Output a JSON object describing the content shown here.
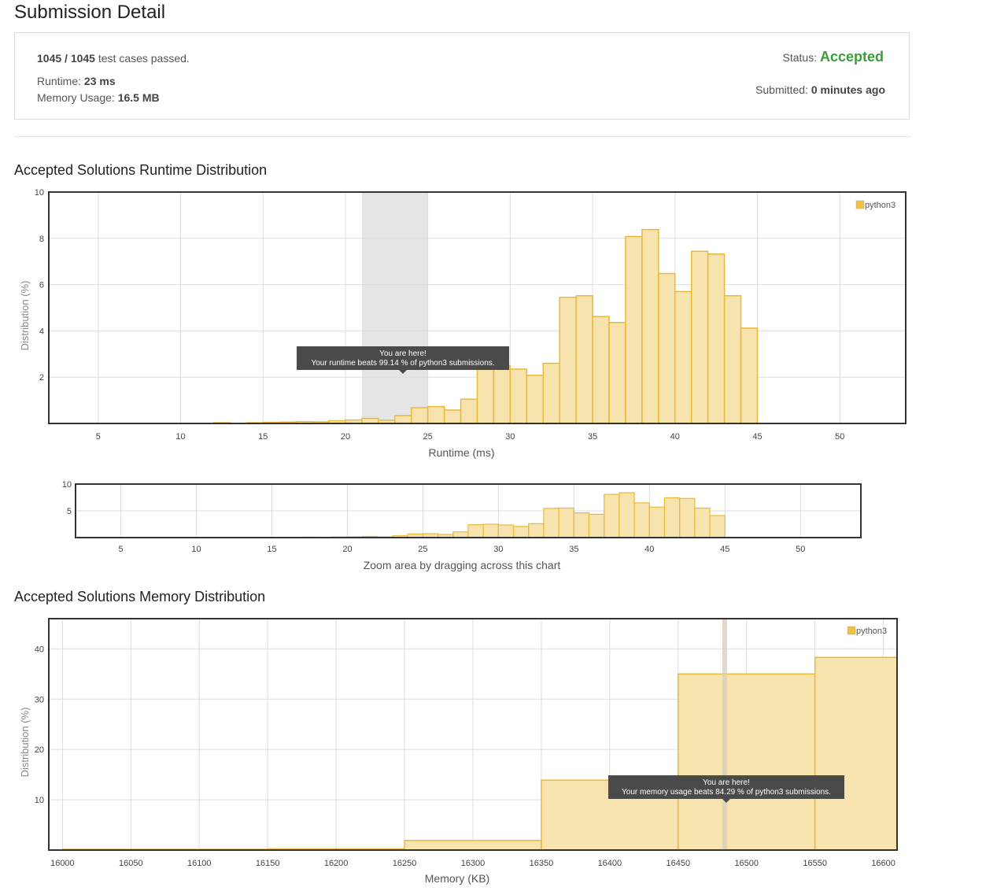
{
  "page_title": "Submission Detail",
  "summary": {
    "passed_count": "1045 / 1045",
    "passed_text": " test cases passed.",
    "runtime_label": "Runtime: ",
    "runtime_value": "23 ms",
    "memory_label": "Memory Usage: ",
    "memory_value": "16.5 MB",
    "status_label": "Status: ",
    "status_value": "Accepted",
    "submitted_label": "Submitted: ",
    "submitted_value": "0 minutes ago"
  },
  "runtime_section_title": "Accepted Solutions Runtime Distribution",
  "memory_section_title": "Accepted Solutions Memory Distribution",
  "colors": {
    "bar_fill": "#f7e3ad",
    "bar_stroke": "#e8b93a",
    "accent_green": "#3a9d3a",
    "highlight": "#e5e5e5",
    "tooltip": "#4a4a4a"
  },
  "chart_data": [
    {
      "type": "bar",
      "name": "runtime-main",
      "title": "",
      "xlabel": "Runtime (ms)",
      "ylabel": "Distribution (%)",
      "xlim": [
        2,
        54
      ],
      "ylim": [
        0,
        10
      ],
      "xticks": [
        5,
        10,
        15,
        20,
        25,
        30,
        35,
        40,
        45,
        50
      ],
      "yticks": [
        2,
        4,
        6,
        8,
        10
      ],
      "bin_width": 1,
      "legend": "top-right",
      "series": [
        {
          "name": "python3",
          "x": [
            12,
            14,
            15,
            16,
            17,
            18,
            19,
            20,
            21,
            22,
            23,
            24,
            25,
            26,
            27,
            28,
            29,
            30,
            31,
            32,
            33,
            34,
            35,
            36,
            37,
            38,
            39,
            40,
            41,
            42,
            43,
            44
          ],
          "values": [
            0.03,
            0.03,
            0.05,
            0.06,
            0.08,
            0.07,
            0.12,
            0.15,
            0.22,
            0.14,
            0.34,
            0.68,
            0.73,
            0.58,
            1.05,
            2.4,
            2.5,
            2.35,
            2.08,
            2.6,
            5.45,
            5.52,
            4.62,
            4.36,
            8.08,
            8.38,
            6.48,
            5.7,
            7.44,
            7.32,
            5.52,
            4.12
          ]
        }
      ],
      "highlight_range": [
        21,
        25
      ],
      "tooltip": {
        "line1": "You are here!",
        "line2": "Your runtime beats 99.14 % of python3 submissions."
      }
    },
    {
      "type": "bar",
      "name": "runtime-navigator",
      "xlabel": "Zoom area by dragging across this chart",
      "xlim": [
        2,
        54
      ],
      "ylim": [
        0,
        10
      ],
      "xticks": [
        5,
        10,
        15,
        20,
        25,
        30,
        35,
        40,
        45,
        50
      ],
      "yticks": [
        5,
        10
      ]
    },
    {
      "type": "bar",
      "name": "memory-main",
      "title": "",
      "xlabel": "Memory (KB)",
      "ylabel": "Distribution (%)",
      "xlim": [
        15990,
        16610
      ],
      "ylim": [
        0,
        46
      ],
      "xticks": [
        16000,
        16050,
        16100,
        16150,
        16200,
        16250,
        16300,
        16350,
        16400,
        16450,
        16500,
        16550,
        16600
      ],
      "yticks": [
        10,
        20,
        30,
        40
      ],
      "legend": "top-right",
      "series": [
        {
          "name": "python3",
          "bins": [
            {
              "from": 16000,
              "to": 16150,
              "value": 0.15
            },
            {
              "from": 16150,
              "to": 16250,
              "value": 0.25
            },
            {
              "from": 16250,
              "to": 16350,
              "value": 1.9
            },
            {
              "from": 16350,
              "to": 16450,
              "value": 13.9
            },
            {
              "from": 16450,
              "to": 16550,
              "value": 35.0
            },
            {
              "from": 16550,
              "to": 16610,
              "value": 38.3
            }
          ]
        }
      ],
      "highlight_value": 16484,
      "tooltip": {
        "line1": "You are here!",
        "line2": "Your memory usage beats 84.29 % of python3 submissions."
      }
    }
  ]
}
